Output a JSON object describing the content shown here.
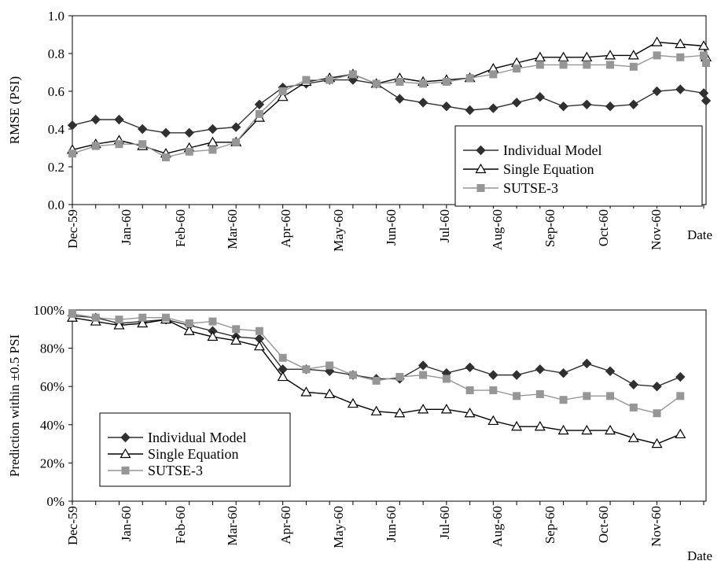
{
  "chart_data": [
    {
      "type": "line",
      "xlabel": "Date",
      "ylabel": "RMSE (PSI)",
      "ylim": [
        0,
        1.0
      ],
      "yticks": [
        "0.0",
        "0.2",
        "0.4",
        "0.6",
        "0.8",
        "1.0"
      ],
      "xticks": [
        "Dec-59",
        "Jan-60",
        "Feb-60",
        "Mar-60",
        "Apr-60",
        "May-60",
        "Jun-60",
        "Jul-60",
        "Aug-60",
        "Sep-60",
        "Oct-60",
        "Nov-60"
      ],
      "grid": false,
      "legend": "bottom-right",
      "series": [
        {
          "name": "Individual Model",
          "marker": "diamond",
          "color": "#303030",
          "points": [
            [
              0,
              0.42
            ],
            [
              0.5,
              0.45
            ],
            [
              1,
              0.45
            ],
            [
              1.5,
              0.4
            ],
            [
              2,
              0.38
            ],
            [
              2.5,
              0.38
            ],
            [
              3,
              0.4
            ],
            [
              3.5,
              0.41
            ],
            [
              4,
              0.53
            ],
            [
              4.5,
              0.62
            ],
            [
              5,
              0.64
            ],
            [
              5.5,
              0.66
            ],
            [
              6,
              0.66
            ],
            [
              6.5,
              0.64
            ],
            [
              7,
              0.56
            ],
            [
              7.5,
              0.54
            ],
            [
              8,
              0.52
            ],
            [
              8.5,
              0.5
            ],
            [
              9,
              0.51
            ],
            [
              9.5,
              0.54
            ],
            [
              10,
              0.57
            ],
            [
              10.5,
              0.52
            ],
            [
              11,
              0.53
            ],
            [
              11.5,
              0.52
            ],
            [
              12,
              0.53
            ],
            [
              12.5,
              0.6
            ],
            [
              13,
              0.61
            ],
            [
              13.5,
              0.59
            ],
            [
              13.55,
              0.55
            ]
          ]
        },
        {
          "name": "Single Equation",
          "marker": "triangle",
          "color": "#000000",
          "points": [
            [
              0,
              0.29
            ],
            [
              0.5,
              0.32
            ],
            [
              1,
              0.34
            ],
            [
              1.5,
              0.31
            ],
            [
              2,
              0.27
            ],
            [
              2.5,
              0.3
            ],
            [
              3,
              0.33
            ],
            [
              3.5,
              0.33
            ],
            [
              4,
              0.46
            ],
            [
              4.5,
              0.57
            ],
            [
              5,
              0.65
            ],
            [
              5.5,
              0.67
            ],
            [
              6,
              0.69
            ],
            [
              6.5,
              0.64
            ],
            [
              7,
              0.67
            ],
            [
              7.5,
              0.65
            ],
            [
              8,
              0.66
            ],
            [
              8.5,
              0.67
            ],
            [
              9,
              0.72
            ],
            [
              9.5,
              0.75
            ],
            [
              10,
              0.78
            ],
            [
              10.5,
              0.78
            ],
            [
              11,
              0.78
            ],
            [
              11.5,
              0.79
            ],
            [
              12,
              0.79
            ],
            [
              12.5,
              0.86
            ],
            [
              13,
              0.85
            ],
            [
              13.5,
              0.84
            ],
            [
              13.55,
              0.78
            ]
          ]
        },
        {
          "name": "SUTSE-3",
          "marker": "square",
          "color": "#969696",
          "points": [
            [
              0,
              0.27
            ],
            [
              0.5,
              0.31
            ],
            [
              1,
              0.32
            ],
            [
              1.5,
              0.32
            ],
            [
              2,
              0.25
            ],
            [
              2.5,
              0.28
            ],
            [
              3,
              0.29
            ],
            [
              3.5,
              0.33
            ],
            [
              4,
              0.48
            ],
            [
              4.5,
              0.6
            ],
            [
              5,
              0.66
            ],
            [
              5.5,
              0.66
            ],
            [
              6,
              0.69
            ],
            [
              6.5,
              0.64
            ],
            [
              7,
              0.65
            ],
            [
              7.5,
              0.64
            ],
            [
              8,
              0.65
            ],
            [
              8.5,
              0.67
            ],
            [
              9,
              0.69
            ],
            [
              9.5,
              0.72
            ],
            [
              10,
              0.74
            ],
            [
              10.5,
              0.74
            ],
            [
              11,
              0.74
            ],
            [
              11.5,
              0.74
            ],
            [
              12,
              0.73
            ],
            [
              12.5,
              0.79
            ],
            [
              13,
              0.78
            ],
            [
              13.5,
              0.79
            ],
            [
              13.55,
              0.75
            ]
          ]
        }
      ]
    },
    {
      "type": "line",
      "xlabel": "Date",
      "ylabel": "Prediction within ±0.5 PSI",
      "ylim": [
        0,
        100
      ],
      "yticks": [
        "0%",
        "20%",
        "40%",
        "60%",
        "80%",
        "100%"
      ],
      "xticks": [
        "Dec-59",
        "Jan-60",
        "Feb-60",
        "Mar-60",
        "Apr-60",
        "May-60",
        "Jun-60",
        "Jul-60",
        "Aug-60",
        "Sep-60",
        "Oct-60",
        "Nov-60"
      ],
      "grid": false,
      "legend": "bottom-left",
      "series": [
        {
          "name": "Individual Model",
          "marker": "diamond",
          "color": "#303030",
          "points": [
            [
              0,
              97
            ],
            [
              0.5,
              96
            ],
            [
              1,
              93
            ],
            [
              1.5,
              94
            ],
            [
              2,
              95
            ],
            [
              2.5,
              92
            ],
            [
              3,
              89
            ],
            [
              3.5,
              86
            ],
            [
              4,
              85
            ],
            [
              4.5,
              69
            ],
            [
              5,
              69
            ],
            [
              5.5,
              68
            ],
            [
              6,
              66
            ],
            [
              6.5,
              64
            ],
            [
              7,
              64
            ],
            [
              7.5,
              71
            ],
            [
              8,
              67
            ],
            [
              8.5,
              70
            ],
            [
              9,
              66
            ],
            [
              9.5,
              66
            ],
            [
              10,
              69
            ],
            [
              10.5,
              67
            ],
            [
              11,
              72
            ],
            [
              11.5,
              68
            ],
            [
              12,
              61
            ],
            [
              12.5,
              60
            ],
            [
              13,
              65
            ]
          ]
        },
        {
          "name": "Single Equation",
          "marker": "triangle",
          "color": "#000000",
          "points": [
            [
              0,
              96
            ],
            [
              0.5,
              94
            ],
            [
              1,
              92
            ],
            [
              1.5,
              93
            ],
            [
              2,
              95
            ],
            [
              2.5,
              89
            ],
            [
              3,
              86
            ],
            [
              3.5,
              84
            ],
            [
              4,
              81
            ],
            [
              4.5,
              65
            ],
            [
              5,
              57
            ],
            [
              5.5,
              56
            ],
            [
              6,
              51
            ],
            [
              6.5,
              47
            ],
            [
              7,
              46
            ],
            [
              7.5,
              48
            ],
            [
              8,
              48
            ],
            [
              8.5,
              46
            ],
            [
              9,
              42
            ],
            [
              9.5,
              39
            ],
            [
              10,
              39
            ],
            [
              10.5,
              37
            ],
            [
              11,
              37
            ],
            [
              11.5,
              37
            ],
            [
              12,
              33
            ],
            [
              12.5,
              30
            ],
            [
              13,
              35
            ]
          ]
        },
        {
          "name": "SUTSE-3",
          "marker": "square",
          "color": "#969696",
          "points": [
            [
              0,
              98
            ],
            [
              0.5,
              96
            ],
            [
              1,
              95
            ],
            [
              1.5,
              96
            ],
            [
              2,
              96
            ],
            [
              2.5,
              93
            ],
            [
              3,
              94
            ],
            [
              3.5,
              90
            ],
            [
              4,
              89
            ],
            [
              4.5,
              75
            ],
            [
              5,
              69
            ],
            [
              5.5,
              71
            ],
            [
              6,
              66
            ],
            [
              6.5,
              63
            ],
            [
              7,
              65
            ],
            [
              7.5,
              66
            ],
            [
              8,
              64
            ],
            [
              8.5,
              58
            ],
            [
              9,
              58
            ],
            [
              9.5,
              55
            ],
            [
              10,
              56
            ],
            [
              10.5,
              53
            ],
            [
              11,
              55
            ],
            [
              11.5,
              55
            ],
            [
              12,
              49
            ],
            [
              12.5,
              46
            ],
            [
              13,
              55
            ]
          ]
        }
      ]
    }
  ]
}
